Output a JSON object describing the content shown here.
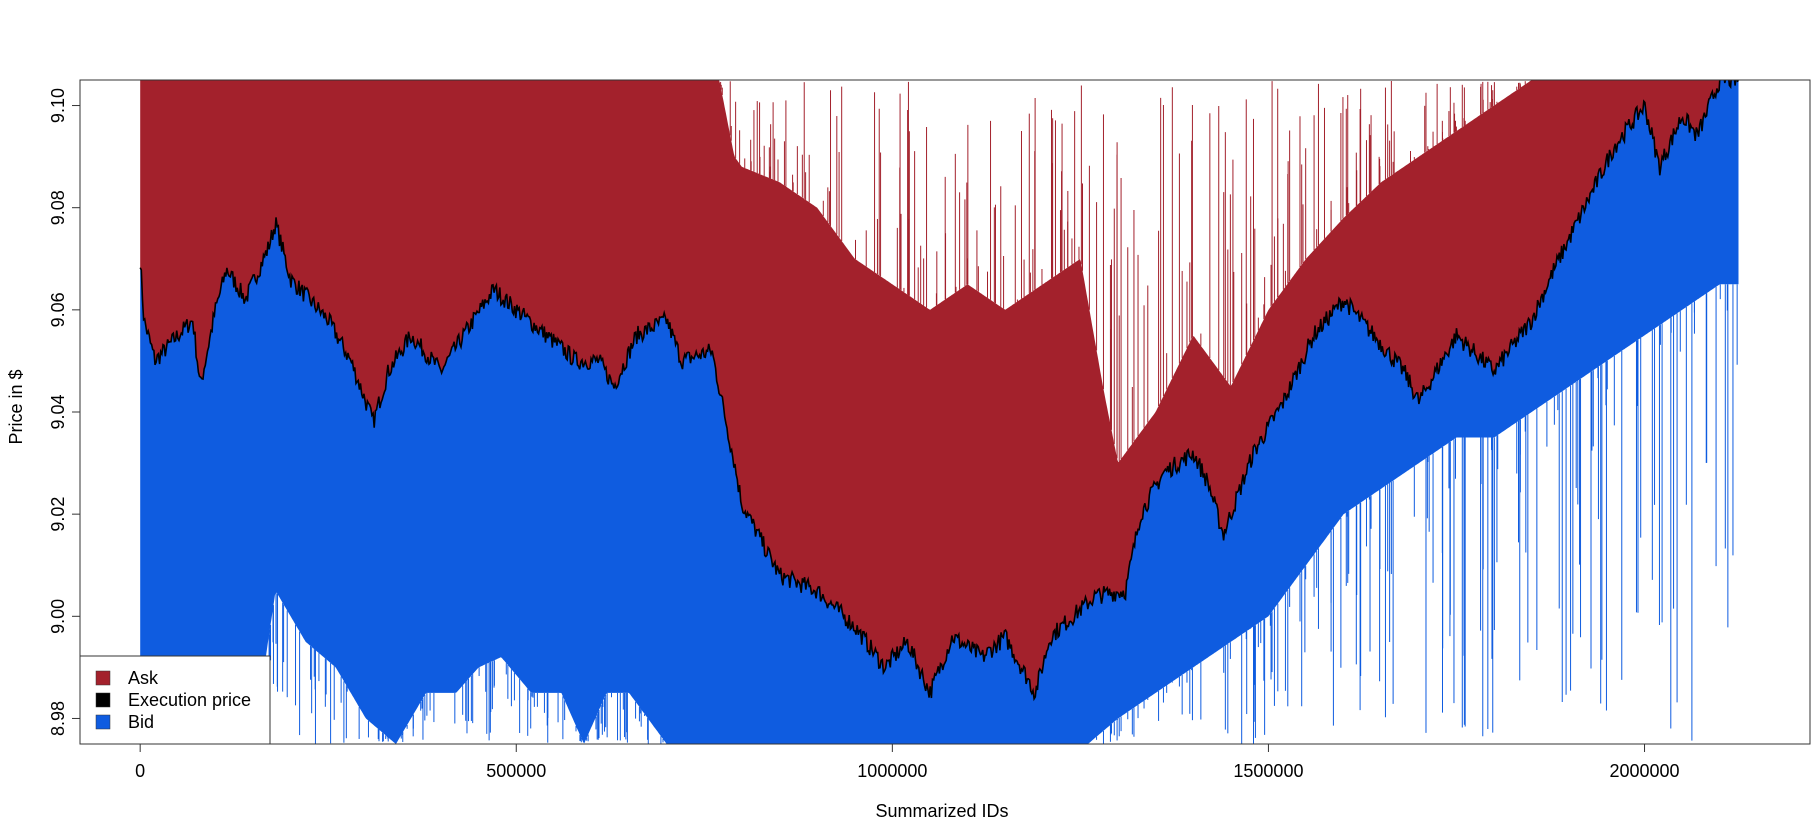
{
  "chart_data": {
    "type": "area",
    "title": "",
    "xlabel": "Summarized IDs",
    "ylabel": "Price in $",
    "xlim": [
      -80000,
      2220000
    ],
    "ylim": [
      8.975,
      9.105
    ],
    "x_ticks": [
      0,
      500000,
      1000000,
      1500000,
      2000000
    ],
    "x_tick_labels": [
      "0",
      "500000",
      "1000000",
      "1500000",
      "2000000"
    ],
    "y_ticks": [
      8.98,
      9.0,
      9.02,
      9.04,
      9.06,
      9.08,
      9.1
    ],
    "y_tick_labels": [
      "8.98",
      "9.00",
      "9.02",
      "9.04",
      "9.06",
      "9.08",
      "9.10"
    ],
    "grid": false,
    "legend": {
      "position": "bottom-left",
      "entries": [
        {
          "label": "Ask",
          "color": "#a3212c"
        },
        {
          "label": "Execution price",
          "color": "#000000"
        },
        {
          "label": "Bid",
          "color": "#0f5ce0"
        }
      ]
    },
    "x_range": [
      0,
      2125000
    ],
    "execution_price": {
      "x": [
        0,
        5000,
        20000,
        50000,
        70000,
        80000,
        100000,
        115000,
        140000,
        170000,
        180000,
        200000,
        250000,
        280000,
        310000,
        330000,
        360000,
        400000,
        430000,
        470000,
        500000,
        540000,
        580000,
        610000,
        630000,
        660000,
        700000,
        720000,
        760000,
        790000,
        800000,
        850000,
        900000,
        950000,
        990000,
        1020000,
        1050000,
        1080000,
        1120000,
        1150000,
        1190000,
        1210000,
        1240000,
        1270000,
        1310000,
        1330000,
        1360000,
        1400000,
        1420000,
        1440000,
        1480000,
        1520000,
        1560000,
        1600000,
        1640000,
        1680000,
        1700000,
        1750000,
        1800000,
        1850000,
        1880000,
        1920000,
        1960000,
        2000000,
        2020000,
        2050000,
        2070000,
        2100000
      ],
      "y": [
        9.07,
        9.058,
        9.05,
        9.055,
        9.058,
        9.045,
        9.06,
        9.068,
        9.062,
        9.072,
        9.077,
        9.066,
        9.058,
        9.05,
        9.038,
        9.048,
        9.055,
        9.048,
        9.055,
        9.064,
        9.06,
        9.055,
        9.05,
        9.05,
        9.045,
        9.055,
        9.058,
        9.05,
        9.052,
        9.03,
        9.022,
        9.008,
        9.005,
        8.998,
        8.99,
        8.995,
        8.985,
        8.996,
        8.992,
        8.996,
        8.985,
        8.996,
        9.0,
        9.004,
        9.005,
        9.02,
        9.028,
        9.032,
        9.026,
        9.016,
        9.032,
        9.042,
        9.055,
        9.062,
        9.055,
        9.048,
        9.042,
        9.055,
        9.048,
        9.058,
        9.068,
        9.08,
        9.092,
        9.1,
        9.088,
        9.098,
        9.094,
        9.105
      ]
    },
    "ask_top_x": [
      0,
      770000,
      790000,
      800000,
      850000,
      900000,
      950000,
      1000000,
      1050000,
      1100000,
      1150000,
      1200000,
      1250000,
      1280000,
      1300000,
      1350000,
      1400000,
      1450000,
      1500000,
      1550000,
      1600000,
      1650000,
      1700000,
      1750000,
      1800000,
      1850000,
      2125000
    ],
    "ask_top_y": [
      9.105,
      9.105,
      9.09,
      9.088,
      9.085,
      9.08,
      9.07,
      9.065,
      9.06,
      9.065,
      9.06,
      9.065,
      9.07,
      9.045,
      9.03,
      9.04,
      9.055,
      9.045,
      9.06,
      9.07,
      9.078,
      9.085,
      9.09,
      9.095,
      9.1,
      9.105,
      9.105
    ],
    "bid_bottom_x": [
      0,
      150000,
      180000,
      220000,
      260000,
      300000,
      340000,
      380000,
      420000,
      450000,
      480000,
      520000,
      560000,
      590000,
      620000,
      650000,
      700000,
      760000,
      790000,
      820000,
      900000,
      1000000,
      1100000,
      1200000,
      1260000,
      1300000,
      1350000,
      1400000,
      1450000,
      1500000,
      1550000,
      1600000,
      1650000,
      1700000,
      1750000,
      1800000,
      1850000,
      1900000,
      1950000,
      2000000,
      2050000,
      2100000,
      2125000
    ],
    "bid_bottom_y": [
      8.975,
      8.975,
      9.005,
      8.995,
      8.99,
      8.98,
      8.975,
      8.985,
      8.985,
      8.99,
      8.992,
      8.985,
      8.985,
      8.975,
      8.985,
      8.985,
      8.975,
      8.975,
      8.975,
      8.975,
      8.975,
      8.975,
      8.975,
      8.975,
      8.975,
      8.98,
      8.985,
      8.99,
      8.995,
      9.0,
      9.01,
      9.02,
      9.025,
      9.03,
      9.035,
      9.035,
      9.04,
      9.045,
      9.05,
      9.055,
      9.06,
      9.065,
      9.065
    ]
  }
}
